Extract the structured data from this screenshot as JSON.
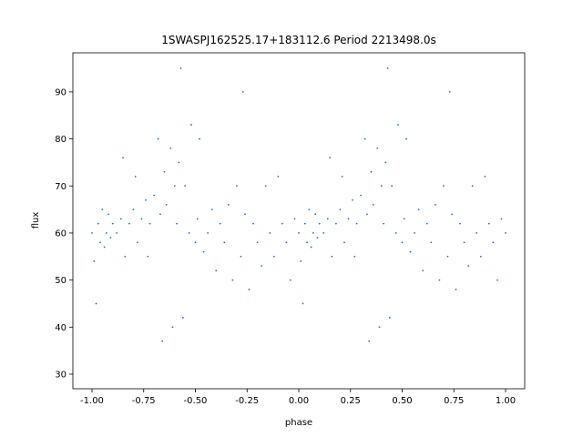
{
  "chart_data": {
    "type": "scatter",
    "title": "1SWASPJ162525.17+183112.6 Period 2213498.0s",
    "x_label": "phase",
    "y_label": "flux",
    "color": "#1f77b4",
    "xlim": [
      -1.0925,
      1.0925
    ],
    "ylim": [
      26.9,
      98.3
    ],
    "xticks": [
      {
        "value": -1,
        "label": "-1.00"
      },
      {
        "value": -0.75,
        "label": "-0.75"
      },
      {
        "value": -0.5,
        "label": "-0.50"
      },
      {
        "value": -0.25,
        "label": "-0.25"
      },
      {
        "value": 0,
        "label": "0.00"
      },
      {
        "value": 0.25,
        "label": "0.25"
      },
      {
        "value": 0.5,
        "label": "0.50"
      },
      {
        "value": 0.75,
        "label": "0.75"
      },
      {
        "value": 1,
        "label": "1.00"
      }
    ],
    "yticks": [
      30,
      40,
      50,
      60,
      70,
      80,
      90
    ],
    "x": [
      -1.0,
      -0.99,
      -0.98,
      -0.97,
      -0.96,
      -0.95,
      -0.94,
      -0.93,
      -0.92,
      -0.91,
      -0.9,
      -0.88,
      -0.86,
      -0.85,
      -0.84,
      -0.82,
      -0.8,
      -0.79,
      -0.78,
      -0.76,
      -0.74,
      -0.73,
      -0.72,
      -0.7,
      -0.68,
      -0.67,
      -0.66,
      -0.65,
      -0.64,
      -0.62,
      -0.61,
      -0.6,
      -0.59,
      -0.58,
      -0.57,
      -0.56,
      -0.55,
      -0.53,
      -0.52,
      -0.5,
      -0.49,
      -0.48,
      -0.46,
      -0.44,
      -0.42,
      -0.4,
      -0.38,
      -0.36,
      -0.34,
      -0.32,
      -0.3,
      -0.28,
      -0.27,
      -0.26,
      -0.24,
      -0.22,
      -0.2,
      -0.18,
      -0.16,
      -0.14,
      -0.12,
      -0.1,
      -0.08,
      -0.06,
      -0.04,
      -0.02,
      0.0,
      0.01,
      0.02,
      0.03,
      0.04,
      0.05,
      0.06,
      0.07,
      0.08,
      0.09,
      0.1,
      0.12,
      0.14,
      0.15,
      0.16,
      0.18,
      0.2,
      0.21,
      0.22,
      0.24,
      0.26,
      0.27,
      0.28,
      0.3,
      0.32,
      0.33,
      0.34,
      0.35,
      0.36,
      0.38,
      0.39,
      0.4,
      0.41,
      0.42,
      0.43,
      0.44,
      0.45,
      0.47,
      0.48,
      0.5,
      0.51,
      0.52,
      0.54,
      0.56,
      0.58,
      0.6,
      0.62,
      0.64,
      0.66,
      0.68,
      0.7,
      0.72,
      0.73,
      0.74,
      0.76,
      0.78,
      0.8,
      0.82,
      0.84,
      0.86,
      0.88,
      0.9,
      0.92,
      0.94,
      0.96,
      0.98,
      1.0
    ],
    "values": [
      60,
      54,
      45,
      62,
      58,
      65,
      57,
      60,
      64,
      59,
      62,
      60,
      63,
      76,
      55,
      62,
      65,
      72,
      58,
      63,
      67,
      55,
      62,
      68,
      80,
      64,
      37,
      73,
      66,
      78,
      40,
      70,
      62,
      75,
      95,
      42,
      70,
      60,
      83,
      58,
      63,
      80,
      56,
      60,
      65,
      52,
      62,
      58,
      66,
      50,
      70,
      55,
      90,
      64,
      48,
      62,
      58,
      53,
      70,
      60,
      55,
      72,
      62,
      58,
      50,
      63,
      60,
      54,
      45,
      62,
      58,
      65,
      57,
      60,
      64,
      59,
      62,
      60,
      63,
      76,
      55,
      62,
      65,
      72,
      58,
      63,
      67,
      55,
      62,
      68,
      80,
      64,
      37,
      73,
      66,
      78,
      40,
      70,
      62,
      75,
      95,
      42,
      70,
      60,
      83,
      58,
      63,
      80,
      56,
      60,
      65,
      52,
      62,
      58,
      66,
      50,
      70,
      55,
      90,
      64,
      48,
      62,
      58,
      53,
      70,
      60,
      55,
      72,
      62,
      58,
      50,
      63,
      60
    ]
  }
}
